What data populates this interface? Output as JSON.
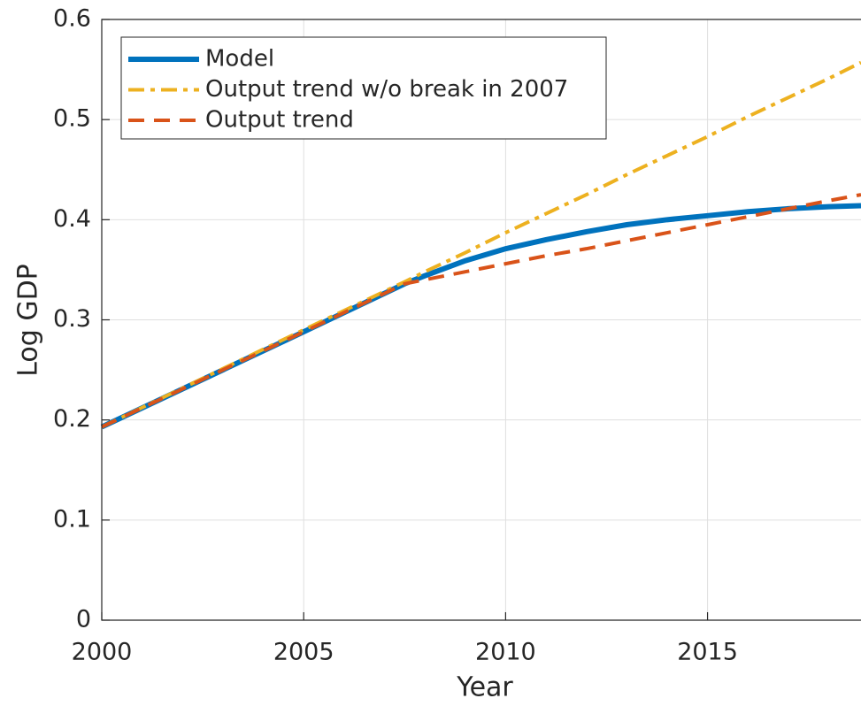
{
  "chart_data": {
    "type": "line",
    "xlabel": "Year",
    "ylabel": "Log GDP",
    "x": [
      2000,
      2005,
      2007.5,
      2008,
      2009,
      2010,
      2011,
      2012,
      2013,
      2014,
      2015,
      2016,
      2017,
      2018,
      2018.8
    ],
    "series": [
      {
        "name": "Model",
        "color": "#0072bd",
        "style": "solid",
        "values": [
          0.193,
          0.288,
          0.336,
          0.344,
          0.359,
          0.371,
          0.38,
          0.388,
          0.395,
          0.4,
          0.404,
          0.408,
          0.411,
          0.413,
          0.414
        ]
      },
      {
        "name": "Output trend w/o break in 2007",
        "color": "#edb120",
        "style": "dashdot",
        "values": [
          0.193,
          0.29,
          0.338,
          0.348,
          0.367,
          0.387,
          0.406,
          0.425,
          0.445,
          0.464,
          0.483,
          0.503,
          0.522,
          0.541,
          0.557
        ]
      },
      {
        "name": "Output trend",
        "color": "#d95319",
        "style": "dashed",
        "values": [
          0.193,
          0.288,
          0.336,
          0.34,
          0.348,
          0.356,
          0.364,
          0.371,
          0.379,
          0.387,
          0.395,
          0.403,
          0.411,
          0.419,
          0.425
        ]
      }
    ],
    "xlim": [
      2000,
      2018.8
    ],
    "xticks": [
      2000,
      2005,
      2010,
      2015
    ],
    "ylim": [
      0,
      0.6
    ],
    "yticks": [
      0,
      0.1,
      0.2,
      0.3,
      0.4,
      0.5,
      0.6
    ],
    "grid": true,
    "legend": "upper left"
  }
}
